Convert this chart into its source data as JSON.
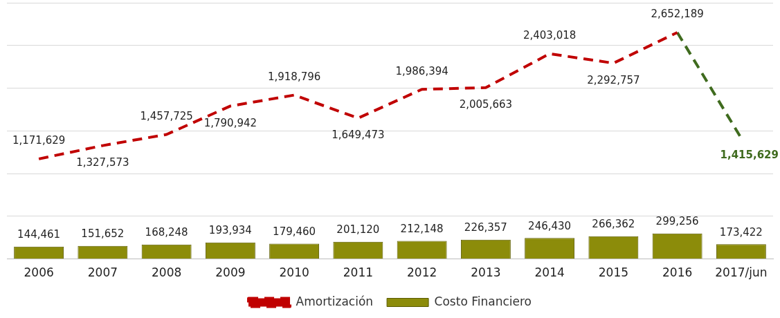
{
  "chart_data": {
    "type": "bar",
    "categories": [
      "2006",
      "2007",
      "2008",
      "2009",
      "2010",
      "2011",
      "2012",
      "2013",
      "2014",
      "2015",
      "2016",
      "2017/jun"
    ],
    "series": [
      {
        "name": "Costo Financiero",
        "color": "#8c8c0a",
        "values": [
          144461,
          151652,
          168248,
          193934,
          179460,
          201120,
          212148,
          226357,
          246430,
          266362,
          299256,
          173422
        ],
        "value_labels": [
          "144,461",
          "151,652",
          "168,248",
          "193,934",
          "179,460",
          "201,120",
          "212,148",
          "226,357",
          "246,430",
          "266,362",
          "299,256",
          "173,422"
        ]
      },
      {
        "name": "Amortización",
        "type": "line",
        "color": "#c00000",
        "values": [
          1171629,
          1327573,
          1457725,
          1790942,
          1918796,
          1649473,
          1986394,
          2005663,
          2403018,
          2292757,
          2652189,
          null
        ],
        "value_labels": [
          "1,171,629",
          "1,327,573",
          "1,457,725",
          "1,790,942",
          "1,918,796",
          "1,649,473",
          "1,986,394",
          "2,005,663",
          "2,403,018",
          "2,292,757",
          "2,652,189",
          null
        ]
      },
      {
        "type": "line",
        "color": "#3f6b1e",
        "values": [
          null,
          null,
          null,
          null,
          null,
          null,
          null,
          null,
          null,
          null,
          2652189,
          1415629
        ],
        "value_labels": [
          null,
          null,
          null,
          null,
          null,
          null,
          null,
          null,
          null,
          null,
          null,
          "1,415,629"
        ]
      }
    ],
    "grid": "y",
    "tick_labels": "x",
    "legend": "bottom",
    "line_style": "dashed",
    "marker": "none"
  }
}
